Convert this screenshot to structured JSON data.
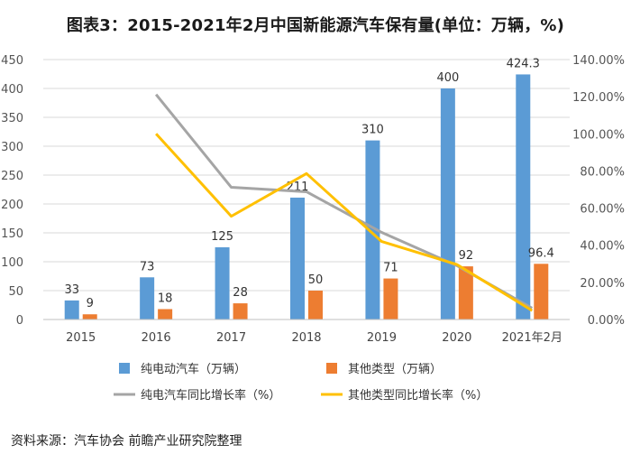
{
  "title": "图表3：2015-2021年2月中国新能源汽车保有量(单位：万辆，%)",
  "source": "资料来源：汽车协会 前瞻产业研究院整理",
  "chart_data": {
    "type": "bar",
    "title": "图表3：2015-2021年2月中国新能源汽车保有量(单位：万辆，%)",
    "categories": [
      "2015",
      "2016",
      "2017",
      "2018",
      "2019",
      "2020",
      "2021年2月"
    ],
    "xlabel": "",
    "ylabel": "",
    "ylim": [
      0,
      450
    ],
    "y_ticks": [
      "0",
      "50",
      "100",
      "150",
      "200",
      "250",
      "300",
      "350",
      "400",
      "450"
    ],
    "y2lim": [
      0,
      140
    ],
    "y2_ticks": [
      "0.00%",
      "20.00%",
      "40.00%",
      "60.00%",
      "80.00%",
      "100.00%",
      "120.00%",
      "140.00%"
    ],
    "grid": true,
    "legend_position": "bottom",
    "series": [
      {
        "name": "纯电动汽车（万辆）",
        "type": "bar",
        "color": "#5B9BD5",
        "values": [
          33,
          73,
          125,
          211,
          310,
          400,
          424.3
        ],
        "labels": [
          "33",
          "73",
          "125",
          "211",
          "310",
          "400",
          "424.3"
        ]
      },
      {
        "name": "其他类型（万辆）",
        "type": "bar",
        "color": "#ED7D31",
        "values": [
          9,
          18,
          28,
          50,
          71,
          92,
          96.4
        ],
        "labels": [
          "9",
          "18",
          "28",
          "50",
          "71",
          "92",
          "96.4"
        ]
      },
      {
        "name": "纯电汽车同比增长率（%）",
        "type": "line",
        "axis": "right",
        "color": "#A5A5A5",
        "values": [
          null,
          121.2,
          71.2,
          68.8,
          46.9,
          29.0,
          6.1
        ]
      },
      {
        "name": "其他类型同比增长率（%）",
        "type": "line",
        "axis": "right",
        "color": "#FFC000",
        "values": [
          null,
          100,
          55.6,
          78.6,
          42,
          29.6,
          4.8
        ]
      }
    ]
  }
}
